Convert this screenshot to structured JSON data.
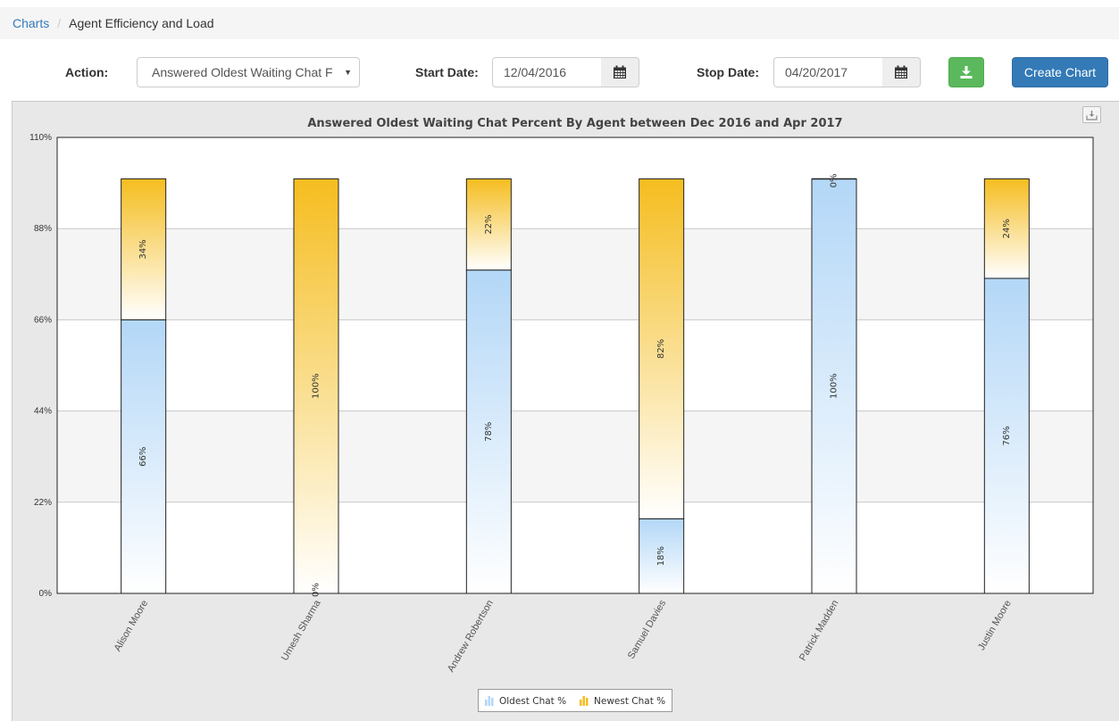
{
  "breadcrumb": {
    "root": "Charts",
    "current": "Agent Efficiency and Load"
  },
  "toolbar": {
    "action_label": "Action:",
    "action_value": "Answered Oldest Waiting Chat F",
    "start_label": "Start Date:",
    "start_value": "12/04/2016",
    "stop_label": "Stop Date:",
    "stop_value": "04/20/2017",
    "create_label": "Create Chart"
  },
  "icons": {
    "calendar": "calendar-icon",
    "download": "download-icon",
    "export": "export-icon",
    "dropdown": "chevron-down-icon"
  },
  "colors": {
    "oldest": "#b3d7f7",
    "newest": "#f5bd1f",
    "primary": "#337ab7",
    "success": "#5cb85c"
  },
  "chart_data": {
    "type": "bar",
    "stacked": true,
    "title": "Answered Oldest Waiting Chat Percent By Agent between Dec 2016 and Apr 2017",
    "categories": [
      "Alison Moore",
      "Umesh Sharma",
      "Andrew Robertson",
      "Samuel Davies",
      "Patrick Madden",
      "Justin Moore"
    ],
    "series": [
      {
        "name": "Oldest Chat %",
        "values": [
          66,
          0,
          78,
          18,
          100,
          76
        ],
        "labels": [
          "66%",
          "0%",
          "78%",
          "18%",
          "100%",
          "76%"
        ]
      },
      {
        "name": "Newest Chat %",
        "values": [
          34,
          100,
          22,
          82,
          0,
          24
        ],
        "labels": [
          "34%",
          "100%",
          "22%",
          "82%",
          "0%",
          "24%"
        ]
      }
    ],
    "yticks": [
      "0%",
      "22%",
      "44%",
      "66%",
      "88%",
      "110%"
    ],
    "ylim": [
      0,
      110
    ],
    "legend_position": "bottom-center",
    "grid": true
  }
}
